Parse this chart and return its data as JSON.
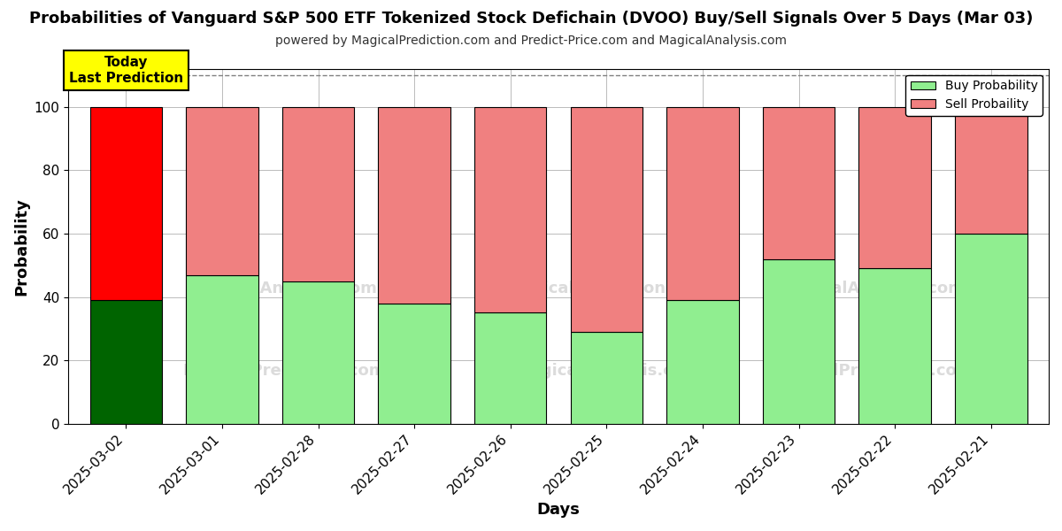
{
  "title": "Probabilities of Vanguard S&P 500 ETF Tokenized Stock Defichain (DVOO) Buy/Sell Signals Over 5 Days (Mar 03)",
  "subtitle": "powered by MagicalPrediction.com and Predict-Price.com and MagicalAnalysis.com",
  "xlabel": "Days",
  "ylabel": "Probability",
  "categories": [
    "2025-03-02",
    "2025-03-01",
    "2025-02-28",
    "2025-02-27",
    "2025-02-26",
    "2025-02-25",
    "2025-02-24",
    "2025-02-23",
    "2025-02-22",
    "2025-02-21"
  ],
  "buy_values": [
    39,
    47,
    45,
    38,
    35,
    29,
    39,
    52,
    49,
    60
  ],
  "sell_values": [
    61,
    53,
    55,
    62,
    65,
    71,
    61,
    48,
    51,
    40
  ],
  "buy_colors": [
    "#006400",
    "#90EE90",
    "#90EE90",
    "#90EE90",
    "#90EE90",
    "#90EE90",
    "#90EE90",
    "#90EE90",
    "#90EE90",
    "#90EE90"
  ],
  "sell_colors": [
    "#FF0000",
    "#F08080",
    "#F08080",
    "#F08080",
    "#F08080",
    "#F08080",
    "#F08080",
    "#F08080",
    "#F08080",
    "#F08080"
  ],
  "ylim": [
    0,
    112
  ],
  "yticks": [
    0,
    20,
    40,
    60,
    80,
    100
  ],
  "dashed_line_y": 110,
  "annotation_text": "Today\nLast Prediction",
  "legend_buy": "Buy Probability",
  "legend_sell": "Sell Probaility",
  "background_color": "#ffffff",
  "grid_color": "#bbbbbb",
  "bar_width": 0.75
}
